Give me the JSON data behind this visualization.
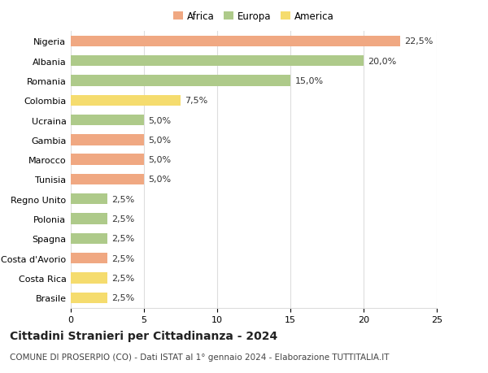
{
  "countries": [
    "Nigeria",
    "Albania",
    "Romania",
    "Colombia",
    "Ucraina",
    "Gambia",
    "Marocco",
    "Tunisia",
    "Regno Unito",
    "Polonia",
    "Spagna",
    "Costa d'Avorio",
    "Costa Rica",
    "Brasile"
  ],
  "values": [
    22.5,
    20.0,
    15.0,
    7.5,
    5.0,
    5.0,
    5.0,
    5.0,
    2.5,
    2.5,
    2.5,
    2.5,
    2.5,
    2.5
  ],
  "labels": [
    "22,5%",
    "20,0%",
    "15,0%",
    "7,5%",
    "5,0%",
    "5,0%",
    "5,0%",
    "5,0%",
    "2,5%",
    "2,5%",
    "2,5%",
    "2,5%",
    "2,5%",
    "2,5%"
  ],
  "continents": [
    "Africa",
    "Europa",
    "Europa",
    "America",
    "Europa",
    "Africa",
    "Africa",
    "Africa",
    "Europa",
    "Europa",
    "Europa",
    "Africa",
    "America",
    "America"
  ],
  "continent_colors": {
    "Africa": "#F0A882",
    "Europa": "#AECA8A",
    "America": "#F5DC6E"
  },
  "legend_order": [
    "Africa",
    "Europa",
    "America"
  ],
  "xlim": [
    0,
    25
  ],
  "xticks": [
    0,
    5,
    10,
    15,
    20,
    25
  ],
  "title": "Cittadini Stranieri per Cittadinanza - 2024",
  "subtitle": "COMUNE DI PROSERPIO (CO) - Dati ISTAT al 1° gennaio 2024 - Elaborazione TUTTITALIA.IT",
  "title_fontsize": 10,
  "subtitle_fontsize": 7.5,
  "label_fontsize": 8,
  "tick_fontsize": 8,
  "legend_fontsize": 8.5,
  "background_color": "#ffffff",
  "grid_color": "#dddddd",
  "bar_height": 0.55
}
